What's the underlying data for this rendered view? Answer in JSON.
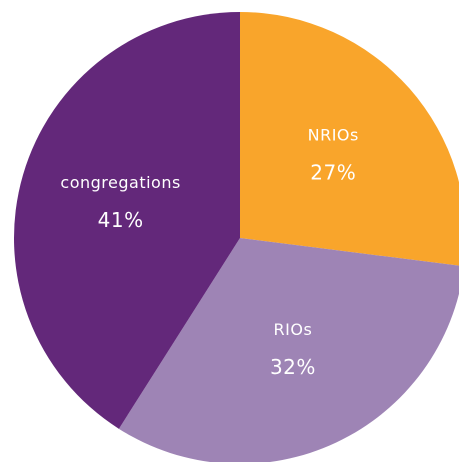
{
  "chart_data": {
    "type": "pie",
    "categories": [
      "NRIOs",
      "RIOs",
      "congregations"
    ],
    "values": [
      27,
      32,
      41
    ],
    "value_labels": [
      "27%",
      "32%",
      "41%"
    ],
    "colors": [
      "#f9a52b",
      "#9e84b5",
      "#63287a"
    ]
  }
}
